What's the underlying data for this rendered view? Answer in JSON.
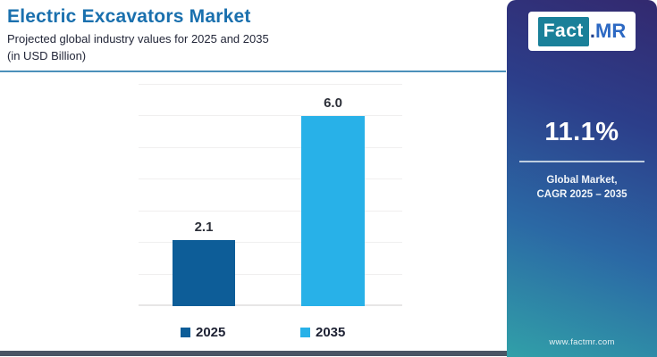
{
  "header": {
    "title": "Electric Excavators Market",
    "subtitle": "Projected global industry values for 2025 and 2035",
    "unit_note": "(in USD Billion)"
  },
  "chart_data": {
    "type": "bar",
    "title": "Electric Excavators Market",
    "subtitle": "Projected global industry values for 2025 and 2035",
    "unit": "USD Billion",
    "categories": [
      "2025",
      "2035"
    ],
    "values": [
      2.1,
      6.0
    ],
    "value_labels": [
      "2.1",
      "6.0"
    ],
    "bar_colors": [
      "#0d5d98",
      "#28b1e8"
    ],
    "ylim": [
      0,
      7
    ],
    "grid": true,
    "gridline_step": 1,
    "legend_position": "bottom"
  },
  "panel": {
    "logo": {
      "fact": "Fact",
      "dot": ".",
      "mr": "MR"
    },
    "cagr_value": "11.1%",
    "caption_line1": "Global Market,",
    "caption_line2": "CAGR 2025 – 2035",
    "website": "www.factmr.com",
    "gradient_top": "#33296f",
    "gradient_bottom": "#31a0a8"
  },
  "colors": {
    "title_blue": "#1a70ae",
    "header_rule": "#4b90ba",
    "footer_bar": "#4a5565"
  }
}
